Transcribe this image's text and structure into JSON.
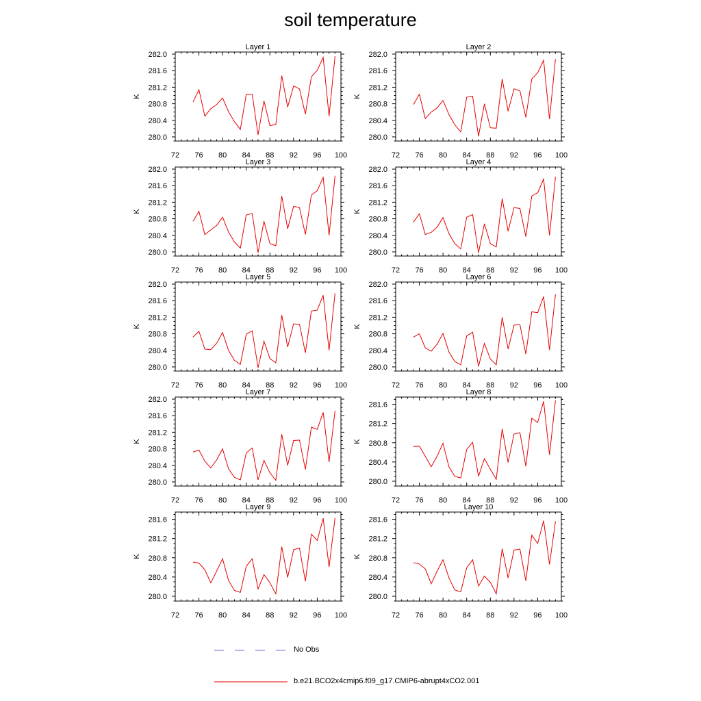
{
  "title": "soil temperature",
  "legend": {
    "items": [
      {
        "label": "No Obs",
        "color": "#6f6fd2",
        "style": "dashed"
      },
      {
        "label": "b.e21.BCO2x4cmip6.f09_g17.CMIP6-abrupt4xCO2.001",
        "color": "#e60000",
        "style": "solid"
      }
    ]
  },
  "chart_data": [
    {
      "type": "line",
      "title": "Layer 1",
      "ylabel": "K",
      "xlim": [
        72,
        100
      ],
      "ylim": [
        279.9,
        282.05
      ],
      "xticks": [
        "72",
        "76",
        "80",
        "84",
        "88",
        "92",
        "96",
        "100"
      ],
      "yticks": [
        "280.0",
        "280.4",
        "280.8",
        "281.2",
        "281.6",
        "282.0"
      ],
      "ytick_values": [
        280.0,
        280.4,
        280.8,
        281.2,
        281.6,
        282.0
      ],
      "series": [
        {
          "color": "#e60000",
          "x": [
            75,
            76,
            77,
            78,
            79,
            80,
            81,
            82,
            83,
            84,
            85,
            86,
            87,
            88,
            89,
            90,
            91,
            92,
            93,
            94,
            95,
            96,
            97,
            98,
            99
          ],
          "values": [
            280.84,
            281.14,
            280.5,
            280.68,
            280.78,
            280.94,
            280.61,
            280.37,
            280.18,
            281.03,
            281.03,
            280.05,
            280.87,
            280.27,
            280.3,
            281.48,
            280.72,
            281.23,
            281.16,
            280.55,
            281.45,
            281.61,
            281.92,
            280.5,
            281.95
          ]
        }
      ]
    },
    {
      "type": "line",
      "title": "Layer 2",
      "ylabel": "K",
      "xlim": [
        72,
        100
      ],
      "ylim": [
        279.9,
        282.05
      ],
      "xticks": [
        "72",
        "76",
        "80",
        "84",
        "88",
        "92",
        "96",
        "100"
      ],
      "yticks": [
        "280.0",
        "280.4",
        "280.8",
        "281.2",
        "281.6",
        "282.0"
      ],
      "ytick_values": [
        280.0,
        280.4,
        280.8,
        281.2,
        281.6,
        282.0
      ],
      "series": [
        {
          "color": "#e60000",
          "x": [
            75,
            76,
            77,
            78,
            79,
            80,
            81,
            82,
            83,
            84,
            85,
            86,
            87,
            88,
            89,
            90,
            91,
            92,
            93,
            94,
            95,
            96,
            97,
            98,
            99
          ],
          "values": [
            280.78,
            281.03,
            280.44,
            280.6,
            280.7,
            280.88,
            280.54,
            280.29,
            280.12,
            280.96,
            280.98,
            280.01,
            280.8,
            280.22,
            280.21,
            281.4,
            280.62,
            281.16,
            281.11,
            280.47,
            281.4,
            281.55,
            281.85,
            280.43,
            281.88
          ]
        }
      ]
    },
    {
      "type": "line",
      "title": "Layer 3",
      "ylabel": "K",
      "xlim": [
        72,
        100
      ],
      "ylim": [
        279.9,
        282.05
      ],
      "xticks": [
        "72",
        "76",
        "80",
        "84",
        "88",
        "92",
        "96",
        "100"
      ],
      "yticks": [
        "280.0",
        "280.4",
        "280.8",
        "281.2",
        "281.6",
        "282.0"
      ],
      "ytick_values": [
        280.0,
        280.4,
        280.8,
        281.2,
        281.6,
        282.0
      ],
      "series": [
        {
          "color": "#e60000",
          "x": [
            75,
            76,
            77,
            78,
            79,
            80,
            81,
            82,
            83,
            84,
            85,
            86,
            87,
            88,
            89,
            90,
            91,
            92,
            93,
            94,
            95,
            96,
            97,
            98,
            99
          ],
          "values": [
            280.74,
            280.98,
            280.42,
            280.53,
            280.64,
            280.84,
            280.48,
            280.24,
            280.09,
            280.89,
            280.93,
            279.98,
            280.74,
            280.2,
            280.15,
            281.35,
            280.56,
            281.1,
            281.07,
            280.42,
            281.37,
            281.48,
            281.8,
            280.4,
            281.84
          ]
        }
      ]
    },
    {
      "type": "line",
      "title": "Layer 4",
      "ylabel": "K",
      "xlim": [
        72,
        100
      ],
      "ylim": [
        279.9,
        282.05
      ],
      "xticks": [
        "72",
        "76",
        "80",
        "84",
        "88",
        "92",
        "96",
        "100"
      ],
      "yticks": [
        "280.0",
        "280.4",
        "280.8",
        "281.2",
        "281.6",
        "282.0"
      ],
      "ytick_values": [
        280.0,
        280.4,
        280.8,
        281.2,
        281.6,
        282.0
      ],
      "series": [
        {
          "color": "#e60000",
          "x": [
            75,
            76,
            77,
            78,
            79,
            80,
            81,
            82,
            83,
            84,
            85,
            86,
            87,
            88,
            89,
            90,
            91,
            92,
            93,
            94,
            95,
            96,
            97,
            98,
            99
          ],
          "values": [
            280.72,
            280.92,
            280.42,
            280.47,
            280.6,
            280.83,
            280.44,
            280.2,
            280.07,
            280.84,
            280.9,
            279.98,
            280.68,
            280.2,
            280.12,
            281.29,
            280.5,
            281.07,
            281.05,
            280.37,
            281.35,
            281.43,
            281.76,
            280.4,
            281.81
          ]
        }
      ]
    },
    {
      "type": "line",
      "title": "Layer 5",
      "ylabel": "K",
      "xlim": [
        72,
        100
      ],
      "ylim": [
        279.9,
        282.05
      ],
      "xticks": [
        "72",
        "76",
        "80",
        "84",
        "88",
        "92",
        "96",
        "100"
      ],
      "yticks": [
        "280.0",
        "280.4",
        "280.8",
        "281.2",
        "281.6",
        "282.0"
      ],
      "ytick_values": [
        280.0,
        280.4,
        280.8,
        281.2,
        281.6,
        282.0
      ],
      "series": [
        {
          "color": "#e60000",
          "x": [
            75,
            76,
            77,
            78,
            79,
            80,
            81,
            82,
            83,
            84,
            85,
            86,
            87,
            88,
            89,
            90,
            91,
            92,
            93,
            94,
            95,
            96,
            97,
            98,
            99
          ],
          "values": [
            280.72,
            280.86,
            280.43,
            280.42,
            280.57,
            280.83,
            280.4,
            280.16,
            280.06,
            280.79,
            280.87,
            279.98,
            280.62,
            280.2,
            280.1,
            281.25,
            280.48,
            281.04,
            281.03,
            280.34,
            281.35,
            281.37,
            281.73,
            280.4,
            281.78
          ]
        }
      ]
    },
    {
      "type": "line",
      "title": "Layer 6",
      "ylabel": "K",
      "xlim": [
        72,
        100
      ],
      "ylim": [
        279.9,
        282.05
      ],
      "xticks": [
        "72",
        "76",
        "80",
        "84",
        "88",
        "92",
        "96",
        "100"
      ],
      "yticks": [
        "280.0",
        "280.4",
        "280.8",
        "281.2",
        "281.6",
        "282.0"
      ],
      "ytick_values": [
        280.0,
        280.4,
        280.8,
        281.2,
        281.6,
        282.0
      ],
      "series": [
        {
          "color": "#e60000",
          "x": [
            75,
            76,
            77,
            78,
            79,
            80,
            81,
            82,
            83,
            84,
            85,
            86,
            87,
            88,
            89,
            90,
            91,
            92,
            93,
            94,
            95,
            96,
            97,
            98,
            99
          ],
          "values": [
            280.72,
            280.8,
            280.46,
            280.38,
            280.55,
            280.81,
            280.36,
            280.13,
            280.05,
            280.75,
            280.84,
            280.01,
            280.57,
            280.19,
            280.05,
            281.2,
            280.43,
            281.01,
            281.02,
            280.31,
            281.33,
            281.31,
            281.7,
            280.41,
            281.75
          ]
        }
      ]
    },
    {
      "type": "line",
      "title": "Layer 7",
      "ylabel": "K",
      "xlim": [
        72,
        100
      ],
      "ylim": [
        279.9,
        282.05
      ],
      "xticks": [
        "72",
        "76",
        "80",
        "84",
        "88",
        "92",
        "96",
        "100"
      ],
      "yticks": [
        "280.0",
        "280.4",
        "280.8",
        "281.2",
        "281.6",
        "282.0"
      ],
      "ytick_values": [
        280.0,
        280.4,
        280.8,
        281.2,
        281.6,
        282.0
      ],
      "series": [
        {
          "color": "#e60000",
          "x": [
            75,
            76,
            77,
            78,
            79,
            80,
            81,
            82,
            83,
            84,
            85,
            86,
            87,
            88,
            89,
            90,
            91,
            92,
            93,
            94,
            95,
            96,
            97,
            98,
            99
          ],
          "values": [
            280.72,
            280.77,
            280.5,
            280.34,
            280.53,
            280.8,
            280.32,
            280.11,
            280.05,
            280.7,
            280.82,
            280.05,
            280.52,
            280.22,
            280.04,
            281.15,
            280.4,
            281.0,
            281.01,
            280.3,
            281.32,
            281.27,
            281.68,
            280.48,
            281.72
          ]
        }
      ]
    },
    {
      "type": "line",
      "title": "Layer 8",
      "ylabel": "K",
      "xlim": [
        72,
        100
      ],
      "ylim": [
        279.9,
        281.75
      ],
      "xticks": [
        "72",
        "76",
        "80",
        "84",
        "88",
        "92",
        "96",
        "100"
      ],
      "yticks": [
        "280.0",
        "280.4",
        "280.8",
        "281.2",
        "281.6"
      ],
      "ytick_values": [
        280.0,
        280.4,
        280.8,
        281.2,
        281.6
      ],
      "series": [
        {
          "color": "#e60000",
          "x": [
            75,
            76,
            77,
            78,
            79,
            80,
            81,
            82,
            83,
            84,
            85,
            86,
            87,
            88,
            89,
            90,
            91,
            92,
            93,
            94,
            95,
            96,
            97,
            98,
            99
          ],
          "values": [
            280.72,
            280.73,
            280.52,
            280.3,
            280.52,
            280.79,
            280.3,
            280.1,
            280.07,
            280.66,
            280.81,
            280.1,
            280.47,
            280.25,
            280.04,
            281.09,
            280.39,
            280.98,
            281.01,
            280.31,
            281.31,
            281.22,
            281.66,
            280.55,
            281.68
          ]
        }
      ]
    },
    {
      "type": "line",
      "title": "Layer 9",
      "ylabel": "K",
      "xlim": [
        72,
        100
      ],
      "ylim": [
        279.9,
        281.75
      ],
      "xticks": [
        "72",
        "76",
        "80",
        "84",
        "88",
        "92",
        "96",
        "100"
      ],
      "yticks": [
        "280.0",
        "280.4",
        "280.8",
        "281.2",
        "281.6"
      ],
      "ytick_values": [
        280.0,
        280.4,
        280.8,
        281.2,
        281.6
      ],
      "series": [
        {
          "color": "#e60000",
          "x": [
            75,
            76,
            77,
            78,
            79,
            80,
            81,
            82,
            83,
            84,
            85,
            86,
            87,
            88,
            89,
            90,
            91,
            92,
            93,
            94,
            95,
            96,
            97,
            98,
            99
          ],
          "values": [
            280.71,
            280.69,
            280.55,
            280.28,
            280.52,
            280.78,
            280.33,
            280.12,
            280.08,
            280.62,
            280.78,
            280.15,
            280.45,
            280.28,
            280.05,
            281.03,
            280.39,
            280.97,
            281.0,
            280.31,
            281.29,
            281.16,
            281.62,
            280.61,
            281.63
          ]
        }
      ]
    },
    {
      "type": "line",
      "title": "Layer 10",
      "ylabel": "K",
      "xlim": [
        72,
        100
      ],
      "ylim": [
        279.9,
        281.75
      ],
      "xticks": [
        "72",
        "76",
        "80",
        "84",
        "88",
        "92",
        "96",
        "100"
      ],
      "yticks": [
        "280.0",
        "280.4",
        "280.8",
        "281.2",
        "281.6"
      ],
      "ytick_values": [
        280.0,
        280.4,
        280.8,
        281.2,
        281.6
      ],
      "series": [
        {
          "color": "#e60000",
          "x": [
            75,
            76,
            77,
            78,
            79,
            80,
            81,
            82,
            83,
            84,
            85,
            86,
            87,
            88,
            89,
            90,
            91,
            92,
            93,
            94,
            95,
            96,
            97,
            98,
            99
          ],
          "values": [
            280.7,
            280.67,
            280.57,
            280.26,
            280.52,
            280.76,
            280.38,
            280.13,
            280.09,
            280.59,
            280.76,
            280.21,
            280.42,
            280.29,
            280.05,
            280.99,
            280.38,
            280.96,
            280.98,
            280.32,
            281.27,
            281.1,
            281.57,
            280.66,
            281.56
          ]
        }
      ]
    }
  ]
}
